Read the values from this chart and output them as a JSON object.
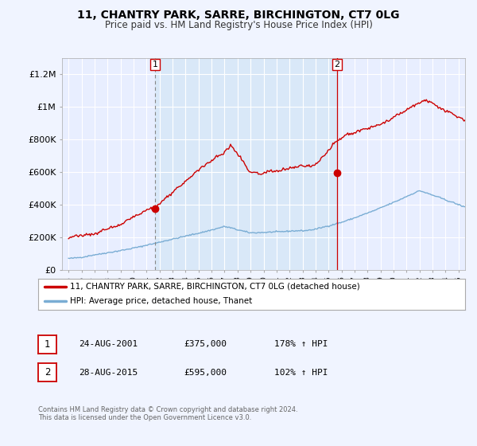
{
  "title": "11, CHANTRY PARK, SARRE, BIRCHINGTON, CT7 0LG",
  "subtitle": "Price paid vs. HM Land Registry's House Price Index (HPI)",
  "bg_color": "#f0f4ff",
  "plot_bg_color": "#e8eeff",
  "grid_color": "#ffffff",
  "red_line_color": "#cc0000",
  "blue_line_color": "#7aadd4",
  "marker_color": "#cc0000",
  "shade_color": "#d8e8f8",
  "sale1_year": 2001.65,
  "sale1_price": 375000,
  "sale2_year": 2015.65,
  "sale2_price": 595000,
  "legend_line1": "11, CHANTRY PARK, SARRE, BIRCHINGTON, CT7 0LG (detached house)",
  "legend_line2": "HPI: Average price, detached house, Thanet",
  "table_row1": [
    "1",
    "24-AUG-2001",
    "£375,000",
    "178% ↑ HPI"
  ],
  "table_row2": [
    "2",
    "28-AUG-2015",
    "£595,000",
    "102% ↑ HPI"
  ],
  "footnote": "Contains HM Land Registry data © Crown copyright and database right 2024.\nThis data is licensed under the Open Government Licence v3.0.",
  "ylim": [
    0,
    1300000
  ],
  "xlim_start": 1994.5,
  "xlim_end": 2025.5,
  "yticks": [
    0,
    200000,
    400000,
    600000,
    800000,
    1000000,
    1200000
  ],
  "ylabels": [
    "£0",
    "£200K",
    "£400K",
    "£600K",
    "£800K",
    "£1M",
    "£1.2M"
  ]
}
